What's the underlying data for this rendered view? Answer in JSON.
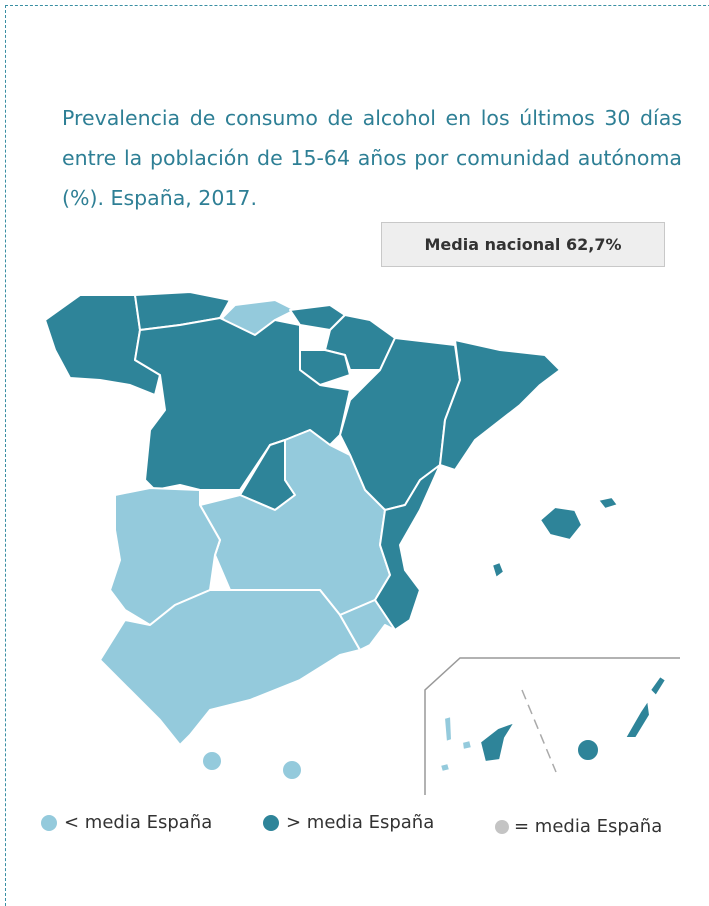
{
  "title": "Prevalencia de consumo de alcohol en los últimos 30 días entre la población de 15-64 años por comunidad autónoma (%). España, 2017.",
  "badge": "Media nacional 62,7%",
  "legend": [
    "< media España",
    "> media España",
    "= media España"
  ]
}
